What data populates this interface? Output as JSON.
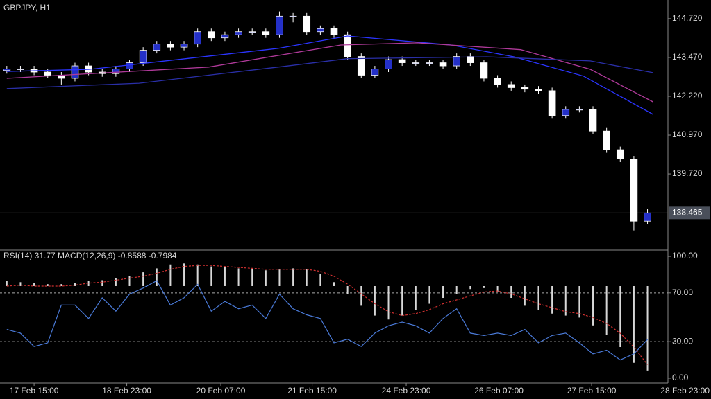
{
  "chart_data": [
    {
      "type": "candlestick",
      "title": "GBPJPY, H1",
      "xlim": [
        -0.5,
        48.5
      ],
      "ylim": [
        137.29,
        145.32
      ],
      "yticks": [
        {
          "value": 144.72,
          "label": "144.720"
        },
        {
          "value": 143.47,
          "label": "143.470"
        },
        {
          "value": 142.22,
          "label": "142.220"
        },
        {
          "value": 140.97,
          "label": "140.970"
        },
        {
          "value": 139.72,
          "label": "139.720"
        }
      ],
      "current_price": {
        "value": 138.465,
        "label": "138.465"
      },
      "bull_color": "#2430c8",
      "bear_color": "#ffffff",
      "open": [
        143.05,
        143.1,
        143.1,
        143.0,
        142.9,
        142.8,
        143.2,
        143.0,
        142.95,
        143.1,
        143.3,
        143.7,
        143.9,
        143.8,
        143.9,
        144.3,
        144.1,
        144.2,
        144.3,
        144.3,
        144.2,
        144.8,
        144.8,
        144.3,
        144.4,
        144.2,
        143.5,
        142.9,
        143.1,
        143.4,
        143.3,
        143.3,
        143.3,
        143.2,
        143.5,
        143.3,
        142.8,
        142.6,
        142.5,
        142.45,
        142.4,
        141.6,
        141.8,
        141.8,
        141.1,
        140.5,
        140.2,
        138.2
      ],
      "high": [
        143.2,
        143.2,
        143.2,
        143.1,
        143.0,
        143.3,
        143.3,
        143.1,
        143.2,
        143.4,
        143.8,
        144.0,
        144.0,
        144.0,
        144.4,
        144.4,
        144.3,
        144.4,
        144.4,
        144.4,
        144.95,
        144.9,
        144.9,
        144.5,
        144.5,
        144.3,
        143.6,
        143.2,
        143.5,
        143.5,
        143.4,
        143.4,
        143.4,
        143.6,
        143.6,
        143.4,
        142.9,
        142.7,
        142.6,
        142.55,
        142.5,
        141.9,
        141.9,
        141.9,
        141.2,
        140.6,
        140.3,
        138.6
      ],
      "low": [
        142.95,
        143.0,
        142.9,
        142.8,
        142.6,
        142.7,
        142.9,
        142.85,
        142.85,
        143.0,
        143.2,
        143.6,
        143.7,
        143.7,
        143.8,
        144.0,
        144.0,
        144.1,
        144.2,
        144.1,
        144.1,
        144.6,
        144.2,
        144.2,
        144.1,
        143.4,
        142.8,
        142.8,
        143.0,
        143.2,
        143.2,
        143.2,
        143.1,
        143.1,
        143.2,
        142.7,
        142.5,
        142.4,
        142.35,
        142.3,
        141.5,
        141.5,
        141.7,
        141.0,
        140.4,
        140.1,
        137.9,
        138.1
      ],
      "close": [
        143.1,
        143.1,
        143.0,
        142.9,
        142.8,
        143.2,
        143.0,
        142.95,
        143.1,
        143.3,
        143.7,
        143.9,
        143.8,
        143.9,
        144.3,
        144.1,
        144.2,
        144.3,
        144.3,
        144.2,
        144.8,
        144.8,
        144.3,
        144.4,
        144.2,
        143.5,
        142.9,
        143.1,
        143.4,
        143.3,
        143.3,
        143.3,
        143.2,
        143.5,
        143.3,
        142.8,
        142.6,
        142.5,
        142.45,
        142.4,
        141.6,
        141.8,
        141.8,
        141.1,
        140.5,
        140.2,
        138.2,
        138.465
      ],
      "series": [
        {
          "color": "#2b35ff",
          "x": [
            0,
            6.1,
            19.9,
            25,
            32.6,
            37.2,
            42.3,
            47.4
          ],
          "values": [
            143.02,
            143.09,
            143.76,
            144.16,
            143.87,
            143.49,
            142.87,
            141.64
          ]
        },
        {
          "color": "#b03a9a",
          "x": [
            0,
            14.8,
            24.5,
            30.1,
            37.7,
            42.8,
            47.4
          ],
          "values": [
            142.8,
            143.16,
            143.87,
            143.94,
            143.72,
            143.09,
            142.04
          ]
        },
        {
          "color": "#2a2fa8",
          "x": [
            0,
            9.7,
            19.9,
            25,
            35.2,
            42.8,
            47.4
          ],
          "values": [
            142.47,
            142.64,
            143.16,
            143.43,
            143.49,
            143.36,
            142.98
          ]
        }
      ]
    },
    {
      "type": "indicator",
      "title": "RSI(14) 31.77 MACD(12,26,9) -0.8588 -0.7984",
      "xlim": [
        -0.5,
        48.5
      ],
      "ylim": [
        -4,
        104
      ],
      "yticks": [
        {
          "value": 100,
          "label": "100.00"
        },
        {
          "value": 70,
          "label": "70.00"
        },
        {
          "value": 30,
          "label": "30.00"
        },
        {
          "value": 0,
          "label": "0.00"
        }
      ],
      "levels": [
        70,
        30
      ],
      "xticks": [
        {
          "value": 2,
          "label": "17 Feb 15:00"
        },
        {
          "value": 8.8,
          "label": "18 Feb 23:00"
        },
        {
          "value": 15.7,
          "label": "20 Feb 07:00"
        },
        {
          "value": 22.4,
          "label": "21 Feb 15:00"
        },
        {
          "value": 29.3,
          "label": "24 Feb 23:00"
        },
        {
          "value": 36.1,
          "label": "26 Feb 07:00"
        },
        {
          "value": 42.9,
          "label": "27 Feb 15:00"
        },
        {
          "value": 49.9,
          "label": "28 Feb 23:00"
        }
      ],
      "y2lim": [
        -0.986,
        0.352
      ],
      "histogram": {
        "color": "#d8d8d8",
        "values": [
          0.05,
          0.04,
          0.03,
          0.02,
          0.02,
          0.03,
          0.05,
          0.06,
          0.08,
          0.1,
          0.14,
          0.18,
          0.22,
          0.23,
          0.22,
          0.2,
          0.19,
          0.18,
          0.17,
          0.16,
          0.17,
          0.18,
          0.17,
          0.12,
          0.04,
          -0.08,
          -0.2,
          -0.3,
          -0.34,
          -0.3,
          -0.24,
          -0.18,
          -0.12,
          -0.08,
          -0.03,
          -0.02,
          -0.06,
          -0.12,
          -0.2,
          -0.24,
          -0.28,
          -0.3,
          -0.32,
          -0.4,
          -0.5,
          -0.62,
          -0.78,
          -0.8588
        ]
      },
      "series": [
        {
          "color": "#4a7ad8",
          "values": [
            40,
            37,
            26,
            29,
            60,
            60,
            49,
            66,
            55,
            69,
            74,
            80,
            60,
            66,
            77,
            55,
            63,
            57,
            60,
            49,
            69,
            57,
            52,
            49,
            29,
            32,
            26,
            37,
            43,
            46,
            43,
            37,
            49,
            57,
            37,
            35,
            37,
            35,
            40,
            29,
            35,
            37,
            29,
            20,
            23,
            15,
            20,
            31.77
          ]
        },
        {
          "color": "#d03030",
          "axis": "y2",
          "dashed": true,
          "values": [
            0.0,
            0.01,
            0.0,
            0.0,
            0.0,
            0.01,
            0.03,
            0.04,
            0.06,
            0.08,
            0.1,
            0.13,
            0.17,
            0.2,
            0.21,
            0.21,
            0.2,
            0.19,
            0.18,
            0.17,
            0.17,
            0.17,
            0.17,
            0.15,
            0.1,
            0.02,
            -0.08,
            -0.18,
            -0.26,
            -0.3,
            -0.28,
            -0.24,
            -0.18,
            -0.14,
            -0.1,
            -0.06,
            -0.05,
            -0.08,
            -0.13,
            -0.18,
            -0.22,
            -0.26,
            -0.28,
            -0.32,
            -0.38,
            -0.48,
            -0.62,
            -0.7984
          ]
        }
      ]
    }
  ]
}
